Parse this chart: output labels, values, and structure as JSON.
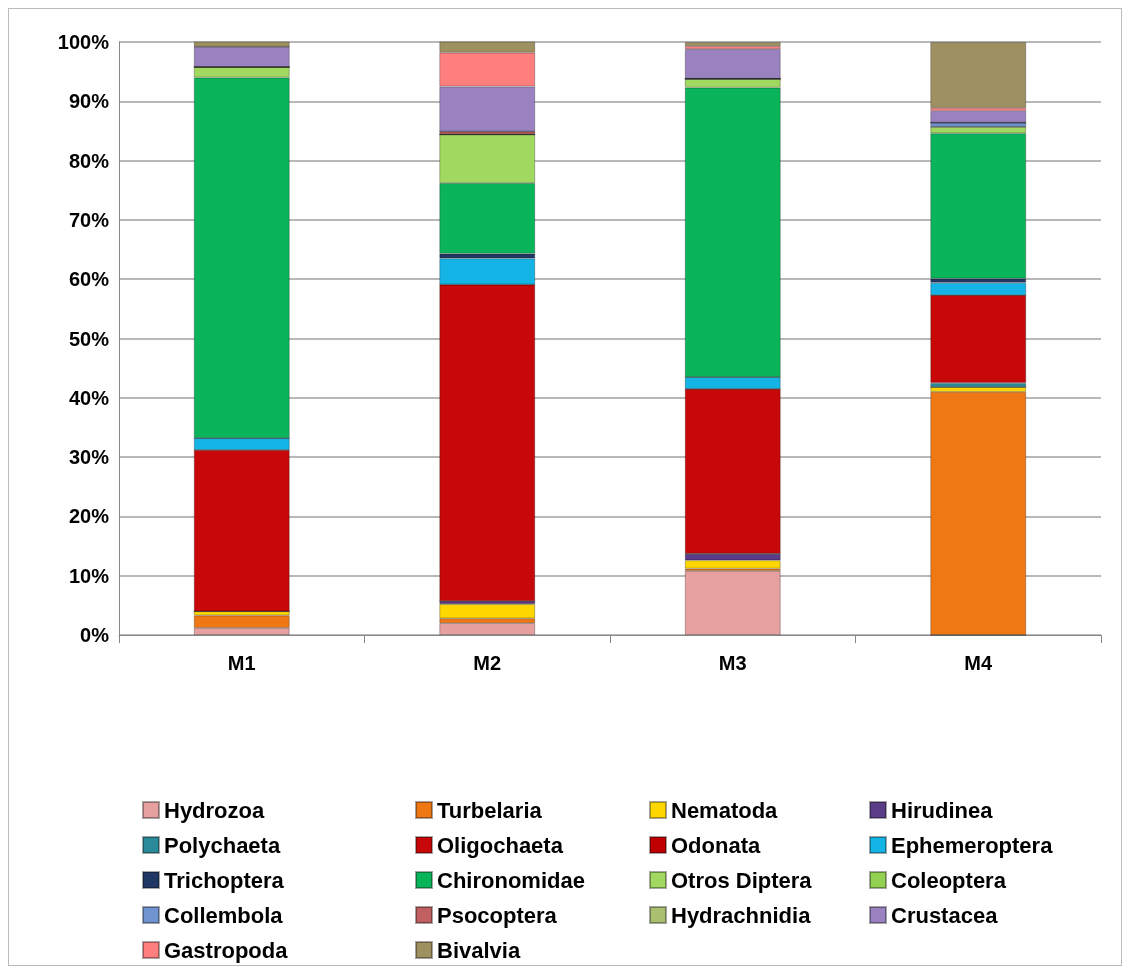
{
  "chart_data": {
    "type": "bar",
    "stacked": true,
    "categories": [
      "M1",
      "M2",
      "M3",
      "M4"
    ],
    "ylim": [
      0,
      100
    ],
    "yticks": [
      {
        "value": 0,
        "label": "0%"
      },
      {
        "value": 10,
        "label": "10%"
      },
      {
        "value": 20,
        "label": "20%"
      },
      {
        "value": 30,
        "label": "30%"
      },
      {
        "value": 40,
        "label": "40%"
      },
      {
        "value": 50,
        "label": "50%"
      },
      {
        "value": 60,
        "label": "60%"
      },
      {
        "value": 70,
        "label": "70%"
      },
      {
        "value": 80,
        "label": "80%"
      },
      {
        "value": 90,
        "label": "90%"
      },
      {
        "value": 100,
        "label": "100%"
      }
    ],
    "grid": "y",
    "legend": "bottom",
    "series": [
      {
        "name": "Hydrozoa",
        "color": "#e6a0a0",
        "values": [
          1.2,
          2.0,
          10.8,
          0
        ]
      },
      {
        "name": "Turbelaria",
        "color": "#f07814",
        "values": [
          2.1,
          0.8,
          0.4,
          41.0
        ]
      },
      {
        "name": "Nematoda",
        "color": "#ffd700",
        "values": [
          0.7,
          2.4,
          1.4,
          0.8
        ]
      },
      {
        "name": "Hirudinea",
        "color": "#5b3c88",
        "values": [
          0,
          0.5,
          1.1,
          0
        ]
      },
      {
        "name": "Polychaeta",
        "color": "#2a8a9a",
        "values": [
          0,
          0,
          0,
          0.7
        ]
      },
      {
        "name": "Oligochaeta",
        "color": "#c80808",
        "values": [
          27.2,
          53.4,
          27.8,
          14.8
        ]
      },
      {
        "name": "Odonata",
        "color": "#c00000",
        "values": [
          0,
          0,
          0,
          0
        ]
      },
      {
        "name": "Ephemeroptera",
        "color": "#14b4e6",
        "values": [
          2.0,
          4.4,
          2.0,
          2.1
        ]
      },
      {
        "name": "Trichoptera",
        "color": "#1f3864",
        "values": [
          0,
          0.8,
          0,
          0.7
        ]
      },
      {
        "name": "Chironomidae",
        "color": "#0ab45a",
        "values": [
          60.8,
          11.9,
          48.8,
          24.5
        ]
      },
      {
        "name": "Otros Diptera",
        "color": "#a0d860",
        "values": [
          1.8,
          8.2,
          1.5,
          1.1
        ]
      },
      {
        "name": "Coleoptera",
        "color": "#92d050",
        "values": [
          0,
          0,
          0,
          0
        ]
      },
      {
        "name": "Collembola",
        "color": "#6f94d0",
        "values": [
          0,
          0,
          0,
          0.7
        ]
      },
      {
        "name": "Psocoptera",
        "color": "#c06060",
        "values": [
          0,
          0.5,
          0,
          0
        ]
      },
      {
        "name": "Hydrachnidia",
        "color": "#a8c070",
        "values": [
          0,
          0,
          0,
          0
        ]
      },
      {
        "name": "Crustacea",
        "color": "#9a82c0",
        "values": [
          3.4,
          7.6,
          5.0,
          2.0
        ]
      },
      {
        "name": "Gastropoda",
        "color": "#ff7f7f",
        "values": [
          0,
          5.7,
          0.5,
          0.5
        ]
      },
      {
        "name": "Bivalvia",
        "color": "#9e9060",
        "values": [
          0.9,
          1.9,
          0.7,
          11.1
        ]
      }
    ]
  }
}
